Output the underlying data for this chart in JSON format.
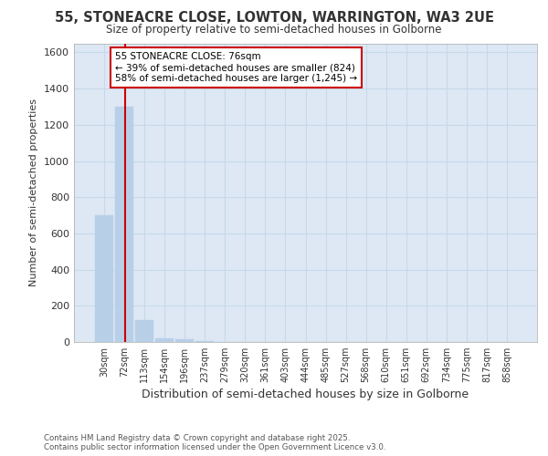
{
  "title1": "55, STONEACRE CLOSE, LOWTON, WARRINGTON, WA3 2UE",
  "title2": "Size of property relative to semi-detached houses in Golborne",
  "xlabel": "Distribution of semi-detached houses by size in Golborne",
  "ylabel": "Number of semi-detached properties",
  "categories": [
    "30sqm",
    "72sqm",
    "113sqm",
    "154sqm",
    "196sqm",
    "237sqm",
    "279sqm",
    "320sqm",
    "361sqm",
    "403sqm",
    "444sqm",
    "485sqm",
    "527sqm",
    "568sqm",
    "610sqm",
    "651sqm",
    "692sqm",
    "734sqm",
    "775sqm",
    "817sqm",
    "858sqm"
  ],
  "values": [
    700,
    1300,
    120,
    20,
    15,
    5,
    0,
    0,
    0,
    0,
    0,
    0,
    0,
    0,
    0,
    0,
    0,
    0,
    0,
    0,
    0
  ],
  "bar_color": "#b8cfe8",
  "bar_edgecolor": "#b8cfe8",
  "grid_color": "#c8d8ea",
  "background_color": "#dde8f4",
  "ylim": [
    0,
    1650
  ],
  "yticks": [
    0,
    200,
    400,
    600,
    800,
    1000,
    1200,
    1400,
    1600
  ],
  "property_line_x": 1.05,
  "annotation_line1": "55 STONEACRE CLOSE: 76sqm",
  "annotation_line2": "← 39% of semi-detached houses are smaller (824)",
  "annotation_line3": "58% of semi-detached houses are larger (1,245) →",
  "annotation_box_facecolor": "#ffffff",
  "annotation_box_edgecolor": "#cc0000",
  "red_line_color": "#cc0000",
  "footer1": "Contains HM Land Registry data © Crown copyright and database right 2025.",
  "footer2": "Contains public sector information licensed under the Open Government Licence v3.0."
}
